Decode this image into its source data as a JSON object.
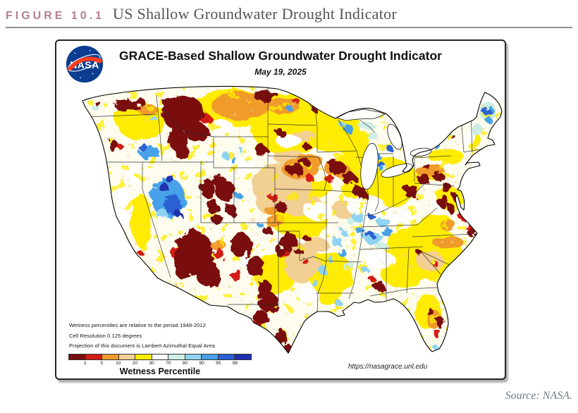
{
  "figure": {
    "label": "FIGURE 10.1",
    "title": "US Shallow Groundwater Drought Indicator",
    "source": "Source: NASA."
  },
  "panel": {
    "title": "GRACE-Based Shallow Groundwater Drought Indicator",
    "date": "May 19, 2025",
    "logo": "nasa-meatball-logo",
    "notes": [
      "Wetness percentiles are relative to the period 1948-2012",
      "Cell Resolution 0.125 degrees",
      "Projection of this document is Lambert Azimuthal Equal Area"
    ],
    "url": "https://nasagrace.unl.edu",
    "legend": {
      "title": "Wetness Percentile",
      "ticks": [
        "2",
        "5",
        "10",
        "20",
        "30",
        "70",
        "80",
        "90",
        "95",
        "98"
      ],
      "colors": [
        "#7a0d10",
        "#d21c14",
        "#f09b2a",
        "#f2cf92",
        "#ffec00",
        "#ffffff",
        "#cdeee6",
        "#8fd3f2",
        "#46a1e8",
        "#2a62d4",
        "#2030b0"
      ]
    }
  }
}
